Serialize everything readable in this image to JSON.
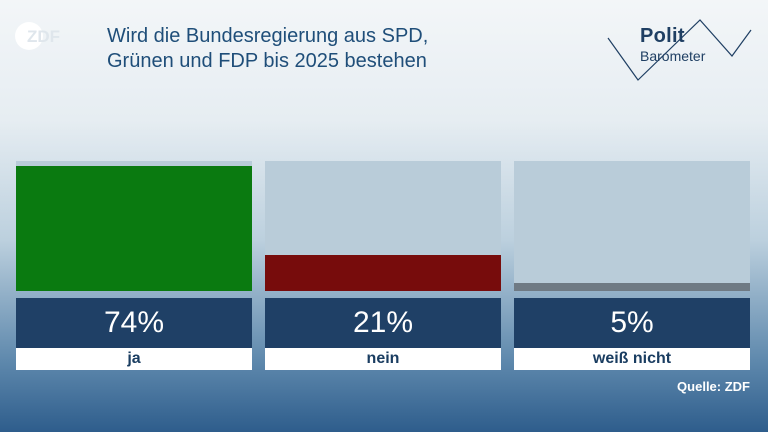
{
  "brand": {
    "left_logo": "ZDF",
    "right_logo_line1": "Polit",
    "right_logo_line2": "Barometer"
  },
  "title_lines": [
    "Wird die Bundesregierung aus SPD,",
    "Grünen und FDP bis 2025 bestehen"
  ],
  "source": "Quelle: ZDF",
  "chart_data": {
    "type": "bar",
    "title": "Wird die Bundesregierung aus SPD, Grünen und FDP bis 2025 bestehen",
    "categories": [
      "ja",
      "nein",
      "weiß nicht"
    ],
    "values": [
      74,
      21,
      5
    ],
    "value_labels": [
      "74%",
      "21%",
      "5%"
    ],
    "unit": "%",
    "ylim": [
      0,
      100
    ],
    "colors": [
      "#0a7a10",
      "#770c0c",
      "#6f7a84"
    ],
    "grid": false,
    "legend": "none"
  }
}
